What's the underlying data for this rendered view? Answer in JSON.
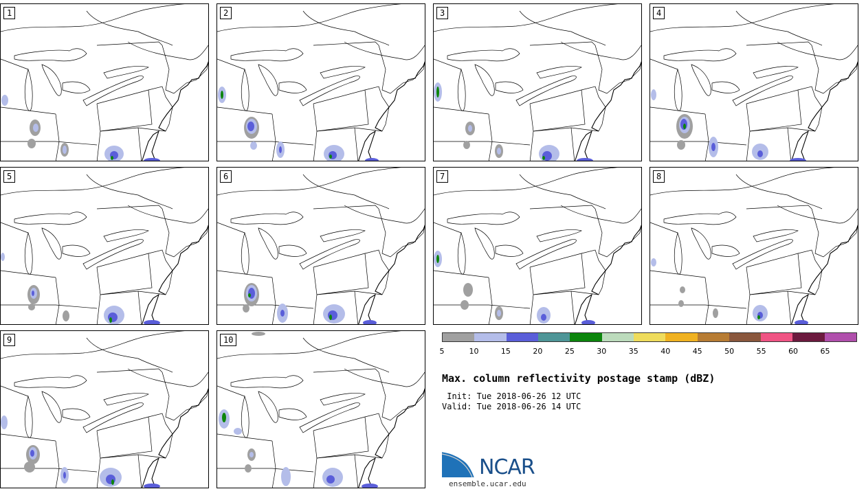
{
  "panels": [
    {
      "label": "1"
    },
    {
      "label": "2"
    },
    {
      "label": "3"
    },
    {
      "label": "4"
    },
    {
      "label": "5"
    },
    {
      "label": "6"
    },
    {
      "label": "7"
    },
    {
      "label": "8"
    },
    {
      "label": "9"
    },
    {
      "label": "10"
    }
  ],
  "colorbar": {
    "colors": [
      "#a0a0a0",
      "#b4bde9",
      "#5a5ed9",
      "#4e9597",
      "#0c850c",
      "#bcdbbc",
      "#efdc5c",
      "#f0b221",
      "#b77c33",
      "#8a573d",
      "#f05484",
      "#6c1a3e",
      "#b04fac"
    ],
    "ticks": [
      "5",
      "10",
      "15",
      "20",
      "25",
      "30",
      "35",
      "40",
      "45",
      "50",
      "55",
      "60",
      "65"
    ]
  },
  "title": "Max. column reflectivity postage stamp (dBZ)",
  "init": " Init: Tue 2018-06-26 12 UTC",
  "valid": "Valid: Tue 2018-06-26 14 UTC",
  "logo": {
    "text": "NCAR",
    "url": "ensemble.ucar.edu"
  }
}
